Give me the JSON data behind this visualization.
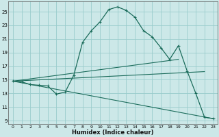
{
  "xlabel": "Humidex (Indice chaleur)",
  "bg_color": "#cce8e8",
  "grid_color": "#99cccc",
  "line_color": "#1a6b5a",
  "xlim": [
    -0.5,
    23.5
  ],
  "ylim": [
    8.5,
    26.5
  ],
  "xtick_vals": [
    0,
    1,
    2,
    3,
    4,
    5,
    6,
    7,
    8,
    9,
    10,
    11,
    12,
    13,
    14,
    15,
    16,
    17,
    18,
    19,
    20,
    21,
    22,
    23
  ],
  "ytick_vals": [
    9,
    11,
    13,
    15,
    17,
    19,
    21,
    23,
    25
  ],
  "main_x": [
    0,
    1,
    2,
    3,
    4,
    5,
    6,
    7,
    8,
    9,
    10,
    11,
    12,
    13,
    14,
    15,
    16,
    17,
    18,
    19,
    20,
    21,
    22,
    23
  ],
  "main_y": [
    14.8,
    14.7,
    14.3,
    14.2,
    14.1,
    12.9,
    13.2,
    15.7,
    20.5,
    22.2,
    23.5,
    25.3,
    25.7,
    25.2,
    24.2,
    22.2,
    21.3,
    19.7,
    18.0,
    20.0,
    16.3,
    13.0,
    9.5,
    9.3
  ],
  "trend1_x": [
    0,
    19
  ],
  "trend1_y": [
    14.8,
    18.0
  ],
  "trend2_x": [
    0,
    22
  ],
  "trend2_y": [
    14.8,
    16.2
  ],
  "trend3_x": [
    0,
    23
  ],
  "trend3_y": [
    14.8,
    9.3
  ]
}
